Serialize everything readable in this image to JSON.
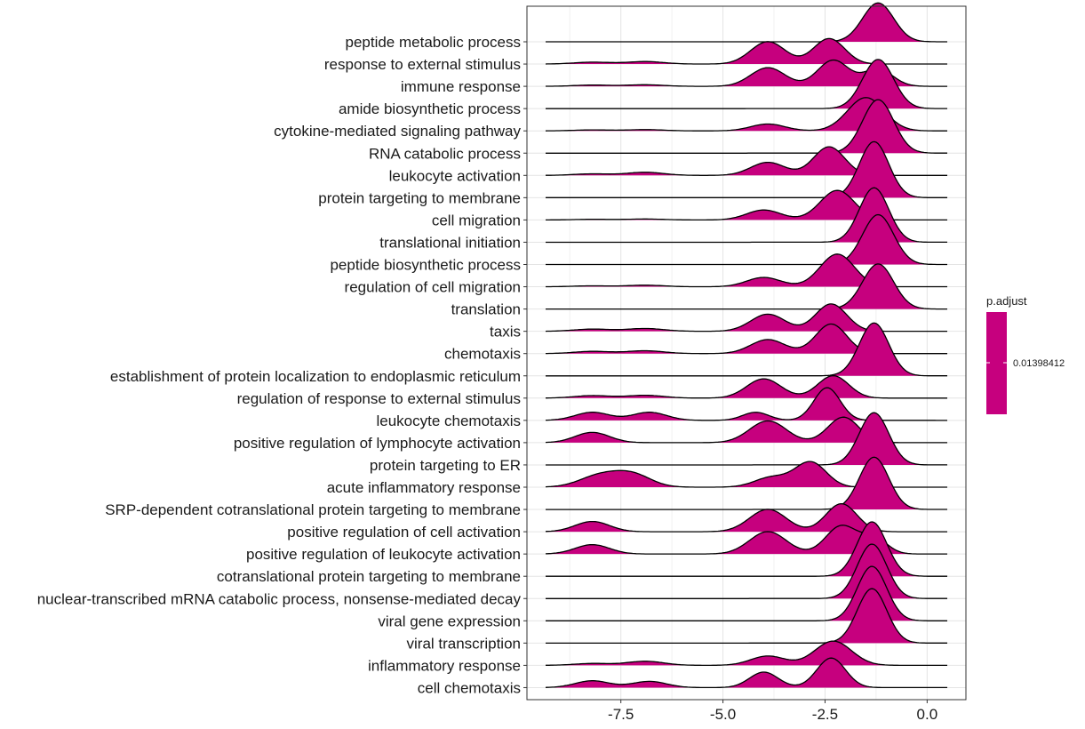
{
  "chart_data": {
    "type": "ridgeline",
    "x_range": [
      -9.8,
      0.95
    ],
    "x_ticks": [
      {
        "value": -7.5,
        "label": "-7.5"
      },
      {
        "value": -5.0,
        "label": "-5.0"
      },
      {
        "value": -2.5,
        "label": "-2.5"
      },
      {
        "value": 0.0,
        "label": "0.0"
      }
    ],
    "grid": true,
    "fill_color": "#C6007E",
    "legend": {
      "title": "p.adjust",
      "label": "0.01398412",
      "placement": "right"
    },
    "categories": [
      {
        "name": "peptide metabolic process",
        "peaks": [
          [
            -1.2,
            0.38,
            1.25
          ]
        ]
      },
      {
        "name": "response to external stimulus",
        "peaks": [
          [
            -8.2,
            0.45,
            0.06
          ],
          [
            -6.9,
            0.45,
            0.08
          ],
          [
            -3.9,
            0.42,
            0.72
          ],
          [
            -2.4,
            0.38,
            0.82
          ]
        ]
      },
      {
        "name": "immune response",
        "peaks": [
          [
            -8.2,
            0.45,
            0.04
          ],
          [
            -6.9,
            0.45,
            0.05
          ],
          [
            -3.9,
            0.42,
            0.6
          ],
          [
            -2.3,
            0.38,
            0.84
          ],
          [
            -1.2,
            0.36,
            0.55
          ]
        ]
      },
      {
        "name": "amide biosynthetic process",
        "peaks": [
          [
            -1.2,
            0.38,
            1.58
          ]
        ]
      },
      {
        "name": "cytokine-mediated signaling pathway",
        "peaks": [
          [
            -8.2,
            0.45,
            0.03
          ],
          [
            -6.9,
            0.45,
            0.04
          ],
          [
            -3.9,
            0.42,
            0.22
          ],
          [
            -1.5,
            0.45,
            1.07
          ]
        ]
      },
      {
        "name": "RNA catabolic process",
        "peaks": [
          [
            -1.2,
            0.38,
            1.72
          ]
        ]
      },
      {
        "name": "leukocyte activation",
        "peaks": [
          [
            -8.2,
            0.45,
            0.05
          ],
          [
            -6.9,
            0.45,
            0.1
          ],
          [
            -3.9,
            0.42,
            0.42
          ],
          [
            -2.4,
            0.38,
            0.92
          ]
        ]
      },
      {
        "name": "protein targeting to membrane",
        "peaks": [
          [
            -1.3,
            0.36,
            1.8
          ]
        ]
      },
      {
        "name": "cell migration",
        "peaks": [
          [
            -8.2,
            0.45,
            0.02
          ],
          [
            -6.9,
            0.45,
            0.03
          ],
          [
            -4.0,
            0.42,
            0.32
          ],
          [
            -2.2,
            0.42,
            0.95
          ]
        ]
      },
      {
        "name": "translational initiation",
        "peaks": [
          [
            -1.3,
            0.36,
            1.75
          ]
        ]
      },
      {
        "name": "peptide biosynthetic process",
        "peaks": [
          [
            -1.2,
            0.38,
            1.6
          ]
        ]
      },
      {
        "name": "regulation of cell migration",
        "peaks": [
          [
            -8.2,
            0.45,
            0.03
          ],
          [
            -6.9,
            0.45,
            0.05
          ],
          [
            -4.0,
            0.42,
            0.3
          ],
          [
            -2.2,
            0.42,
            1.05
          ]
        ]
      },
      {
        "name": "translation",
        "peaks": [
          [
            -1.2,
            0.38,
            1.45
          ]
        ]
      },
      {
        "name": "taxis",
        "peaks": [
          [
            -8.2,
            0.45,
            0.07
          ],
          [
            -6.9,
            0.45,
            0.09
          ],
          [
            -3.9,
            0.42,
            0.55
          ],
          [
            -2.35,
            0.38,
            0.88
          ]
        ]
      },
      {
        "name": "chemotaxis",
        "peaks": [
          [
            -8.2,
            0.45,
            0.07
          ],
          [
            -6.9,
            0.45,
            0.09
          ],
          [
            -3.9,
            0.42,
            0.45
          ],
          [
            -2.35,
            0.38,
            0.95
          ]
        ]
      },
      {
        "name": "establishment of protein localization to endoplasmic reticulum",
        "peaks": [
          [
            -1.3,
            0.36,
            1.7
          ]
        ]
      },
      {
        "name": "regulation of response to external stimulus",
        "peaks": [
          [
            -8.2,
            0.45,
            0.08
          ],
          [
            -6.9,
            0.45,
            0.09
          ],
          [
            -4.0,
            0.42,
            0.62
          ],
          [
            -2.3,
            0.38,
            0.72
          ]
        ]
      },
      {
        "name": "leukocyte chemotaxis",
        "peaks": [
          [
            -8.2,
            0.42,
            0.26
          ],
          [
            -6.8,
            0.42,
            0.26
          ],
          [
            -4.2,
            0.32,
            0.26
          ],
          [
            -2.45,
            0.32,
            1.05
          ]
        ]
      },
      {
        "name": "positive regulation of lymphocyte activation",
        "peaks": [
          [
            -8.2,
            0.42,
            0.33
          ],
          [
            -3.9,
            0.45,
            0.7
          ],
          [
            -2.05,
            0.38,
            0.82
          ]
        ]
      },
      {
        "name": "protein targeting to ER",
        "peaks": [
          [
            -1.3,
            0.36,
            1.68
          ]
        ]
      },
      {
        "name": "acute inflammatory response",
        "peaks": [
          [
            -8.0,
            0.5,
            0.38
          ],
          [
            -7.2,
            0.45,
            0.38
          ],
          [
            -3.8,
            0.42,
            0.32
          ],
          [
            -2.85,
            0.38,
            0.8
          ]
        ]
      },
      {
        "name": "SRP-dependent cotranslational protein targeting to membrane",
        "peaks": [
          [
            -1.3,
            0.36,
            1.68
          ]
        ]
      },
      {
        "name": "positive regulation of cell activation",
        "peaks": [
          [
            -8.2,
            0.42,
            0.33
          ],
          [
            -3.9,
            0.45,
            0.72
          ],
          [
            -2.1,
            0.38,
            0.9
          ]
        ]
      },
      {
        "name": "positive regulation of leukocyte activation",
        "peaks": [
          [
            -8.2,
            0.42,
            0.3
          ],
          [
            -3.9,
            0.45,
            0.72
          ],
          [
            -2.1,
            0.38,
            0.9
          ],
          [
            -1.3,
            0.32,
            0.5
          ]
        ]
      },
      {
        "name": "cotranslational protein targeting to membrane",
        "peaks": [
          [
            -1.35,
            0.36,
            1.75
          ]
        ]
      },
      {
        "name": "nuclear-transcribed mRNA catabolic process, nonsense-mediated decay",
        "peaks": [
          [
            -1.35,
            0.36,
            1.75
          ]
        ]
      },
      {
        "name": "viral gene expression",
        "peaks": [
          [
            -1.35,
            0.36,
            1.75
          ]
        ]
      },
      {
        "name": "viral transcription",
        "peaks": [
          [
            -1.35,
            0.36,
            1.75
          ]
        ]
      },
      {
        "name": "inflammatory response",
        "peaks": [
          [
            -8.2,
            0.45,
            0.06
          ],
          [
            -6.9,
            0.45,
            0.13
          ],
          [
            -3.9,
            0.42,
            0.3
          ],
          [
            -2.3,
            0.45,
            0.78
          ]
        ]
      },
      {
        "name": "cell chemotaxis",
        "peaks": [
          [
            -8.2,
            0.42,
            0.22
          ],
          [
            -6.8,
            0.42,
            0.2
          ],
          [
            -4.0,
            0.35,
            0.5
          ],
          [
            -2.35,
            0.35,
            0.95
          ]
        ]
      }
    ]
  }
}
